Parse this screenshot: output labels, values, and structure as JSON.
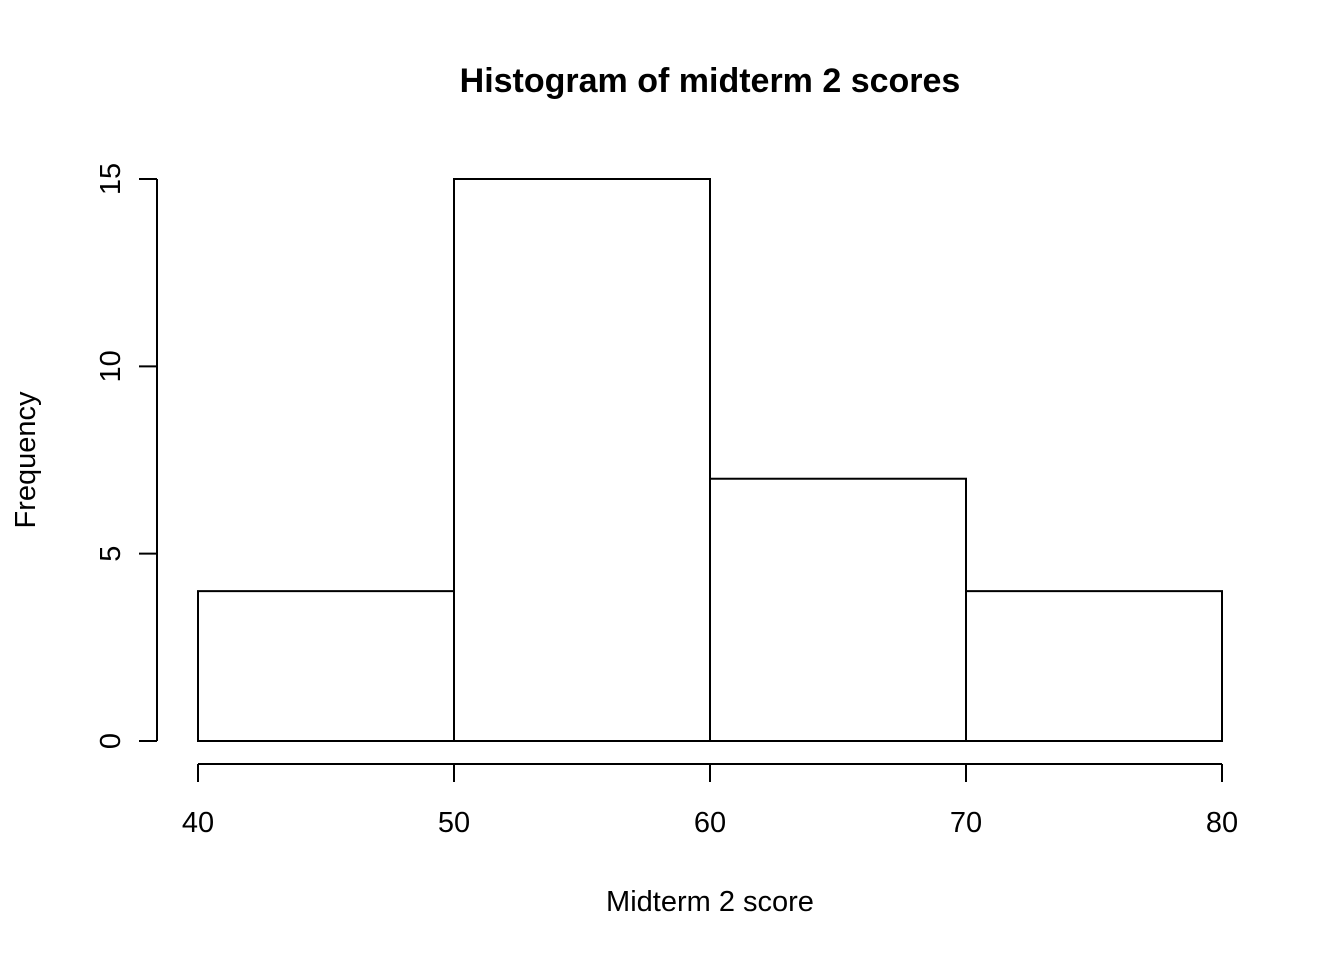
{
  "chart_data": {
    "type": "bar",
    "title": "Histogram of midterm 2 scores",
    "xlabel": "Midterm 2 score",
    "ylabel": "Frequency",
    "bins": [
      {
        "start": 40,
        "end": 50,
        "value": 4
      },
      {
        "start": 50,
        "end": 60,
        "value": 15
      },
      {
        "start": 60,
        "end": 70,
        "value": 7
      },
      {
        "start": 70,
        "end": 80,
        "value": 4
      }
    ],
    "xlim": [
      40,
      80
    ],
    "ylim": [
      0,
      15
    ],
    "x_ticks": [
      40,
      50,
      60,
      70,
      80
    ],
    "y_ticks": [
      0,
      5,
      10,
      15
    ],
    "bar_fill": "#ffffff",
    "bar_stroke": "#000000",
    "grid": false
  }
}
